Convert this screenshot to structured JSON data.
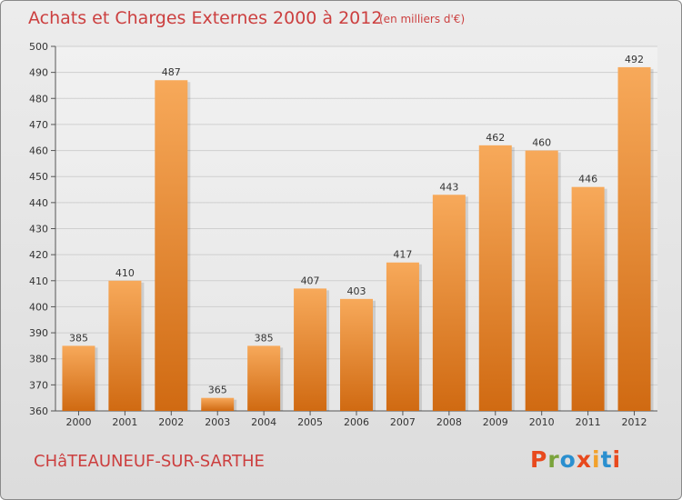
{
  "header": {
    "title": "Achats et Charges Externes 2000 à 2012",
    "subtitle": "(en milliers d'€)"
  },
  "footer": {
    "commune": "CHâTEAUNEUF-SUR-SARTHE",
    "logo_letters": [
      "P",
      "r",
      "o",
      "x",
      "i",
      "t",
      "i"
    ]
  },
  "colors": {
    "title": "#cc3f3f",
    "bar_light": "#f7a95a",
    "bar_dark": "#d06a12",
    "logo": [
      "#e8491d",
      "#7aa33b",
      "#2a8fcf",
      "#e8491d",
      "#f2a12b",
      "#2a8fcf",
      "#e8491d"
    ]
  },
  "chart_data": {
    "type": "bar",
    "title": "Achats et Charges Externes 2000 à 2012",
    "xlabel": "",
    "ylabel": "",
    "categories": [
      "2000",
      "2001",
      "2002",
      "2003",
      "2004",
      "2005",
      "2006",
      "2007",
      "2008",
      "2009",
      "2010",
      "2011",
      "2012"
    ],
    "values": [
      385,
      410,
      487,
      365,
      385,
      407,
      403,
      417,
      443,
      462,
      460,
      446,
      492
    ],
    "ylim": [
      360,
      500
    ],
    "yticks": [
      360,
      370,
      380,
      390,
      400,
      410,
      420,
      430,
      440,
      450,
      460,
      470,
      480,
      490,
      500
    ],
    "grid": true,
    "legend": "none"
  }
}
